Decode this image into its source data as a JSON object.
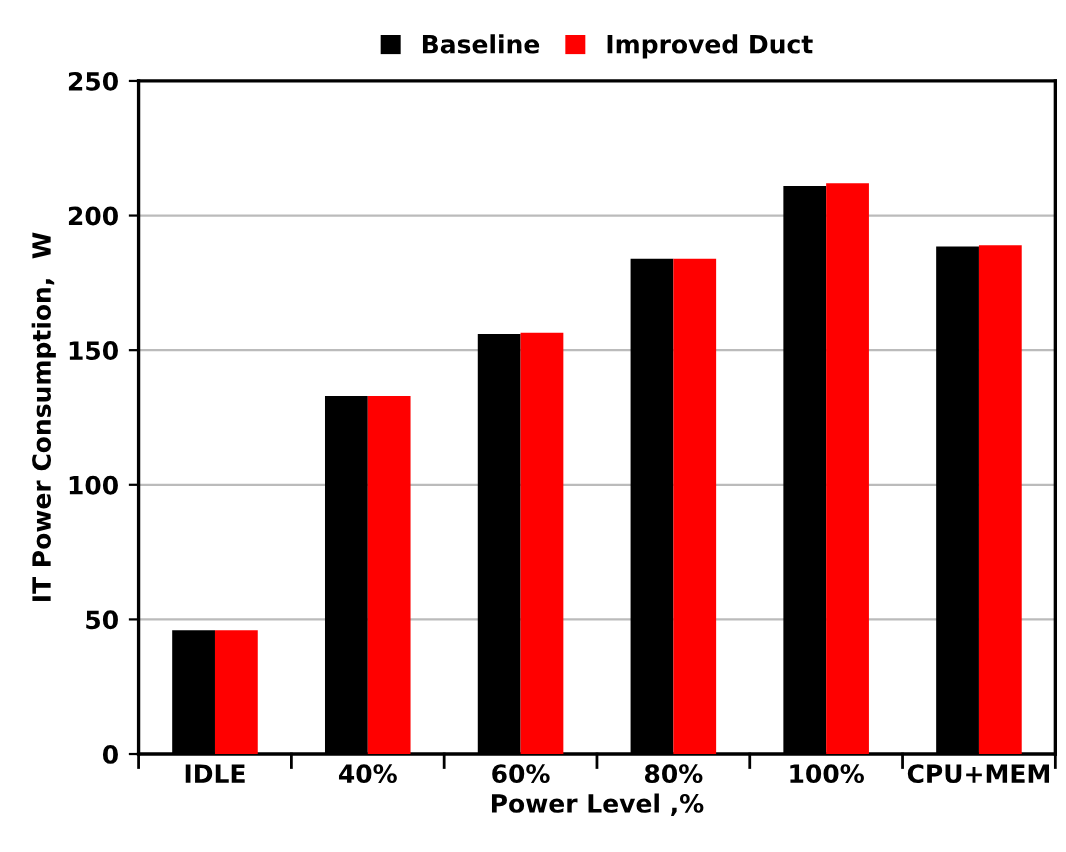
{
  "chart_data": {
    "type": "bar",
    "xlabel": "Power Level ,%",
    "ylabel": "IT Power Consumption,  W",
    "categories": [
      "IDLE",
      "40%",
      "60%",
      "80%",
      "100%",
      "CPU+MEM"
    ],
    "series": [
      {
        "name": "Baseline",
        "color": "#000000",
        "values": [
          46,
          133,
          156,
          184,
          211,
          188.5
        ]
      },
      {
        "name": "Improved Duct",
        "color": "#ff0000",
        "values": [
          46,
          133,
          156.5,
          184,
          212,
          189
        ]
      }
    ],
    "ylim": [
      0,
      250
    ],
    "yticks": [
      0,
      50,
      100,
      150,
      200,
      250
    ],
    "grid": "y",
    "legend": "top"
  }
}
